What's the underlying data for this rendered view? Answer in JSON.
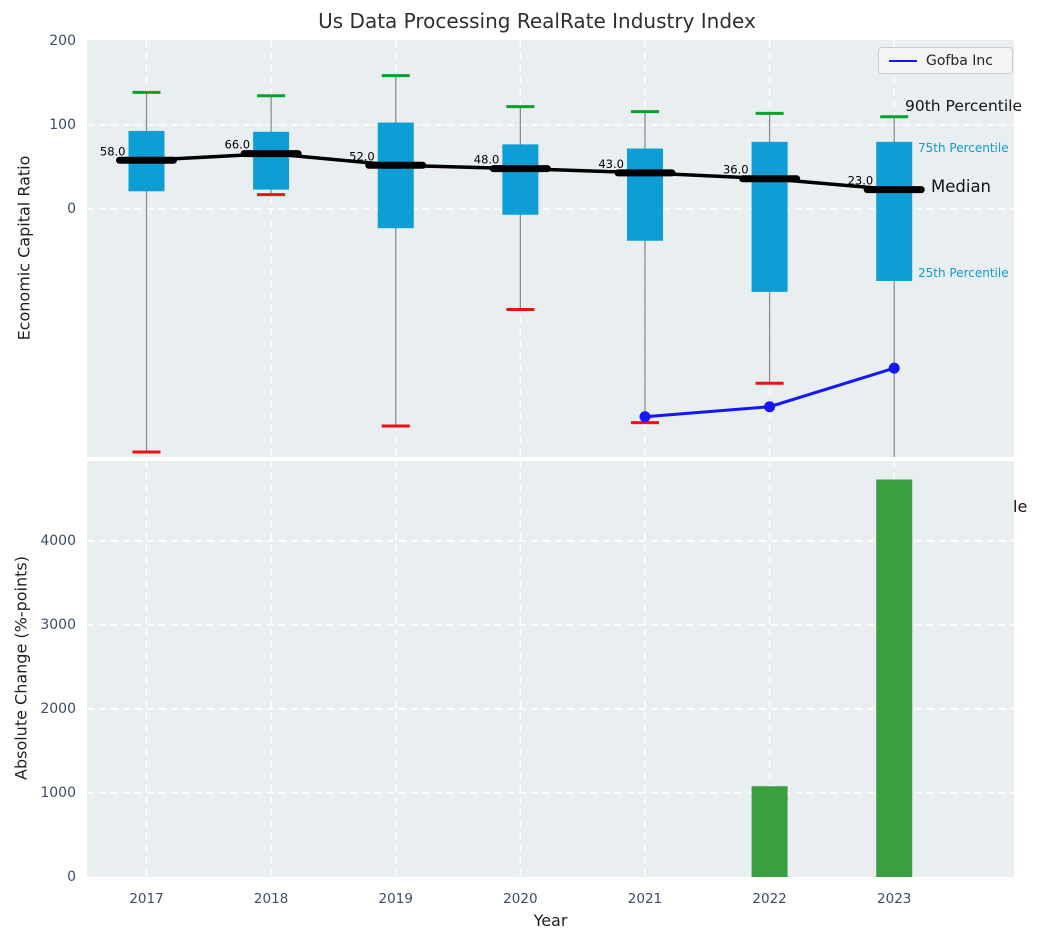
{
  "title": "Us Data Processing RealRate Industry Index",
  "legend": {
    "label": "Gofba Inc"
  },
  "annotations": {
    "p90": "90th Percentile",
    "p75": "75th Percentile",
    "median": "Median",
    "p25": "25th Percentile",
    "clipped_tail": "le"
  },
  "colors": {
    "box_fill": "#0d9ed5",
    "median": "#000000",
    "whisker": "#8c8c8c",
    "cap_high": "#0aa02c",
    "cap_low": "#ee1111",
    "company_line": "#1515ff",
    "bar_fill": "#3b9e3f",
    "panel_bg": "#e9eef1",
    "grid": "#ffffff",
    "tick_text": "#3d4d63",
    "percentile_text": "#0d9ed5"
  },
  "chart_data": [
    {
      "type": "boxplot",
      "panel": "top",
      "ylabel": "Economic Capital Ratio",
      "yticks": [
        0,
        100,
        200
      ],
      "ylim": [
        -296,
        201.5
      ],
      "grid": true,
      "legend_position": "upper right",
      "categories": [
        "2017",
        "2018",
        "2019",
        "2020",
        "2021",
        "2022",
        "2023"
      ],
      "whisker_high_90th": [
        139,
        135,
        159,
        122,
        116,
        114,
        110
      ],
      "box_top_75th": [
        93,
        92,
        103,
        77,
        72,
        80,
        80
      ],
      "median": [
        58.0,
        66.0,
        52.0,
        48.0,
        43.0,
        36.0,
        23.0
      ],
      "median_labels": [
        "58.0",
        "66.0",
        "52.0",
        "48.0",
        "43.0",
        "36.0",
        "23.0"
      ],
      "box_bottom_25th": [
        21,
        23,
        -23,
        -7,
        -38,
        -99,
        -86
      ],
      "whisker_low_10th": [
        -290,
        17,
        -259,
        -120,
        -255,
        -208,
        -355
      ],
      "company_series": {
        "name": "Gofba Inc",
        "values": [
          null,
          null,
          null,
          null,
          -248,
          -236,
          -190
        ]
      }
    },
    {
      "type": "bar",
      "panel": "bottom",
      "ylabel": "Absolute Change (%-points)",
      "xlabel": "Year",
      "yticks": [
        0,
        1000,
        2000,
        3000,
        4000
      ],
      "ylim": [
        0,
        4950
      ],
      "grid": true,
      "categories": [
        "2017",
        "2018",
        "2019",
        "2020",
        "2021",
        "2022",
        "2023"
      ],
      "values": [
        0,
        0,
        0,
        0,
        0,
        1080,
        4730
      ]
    }
  ]
}
